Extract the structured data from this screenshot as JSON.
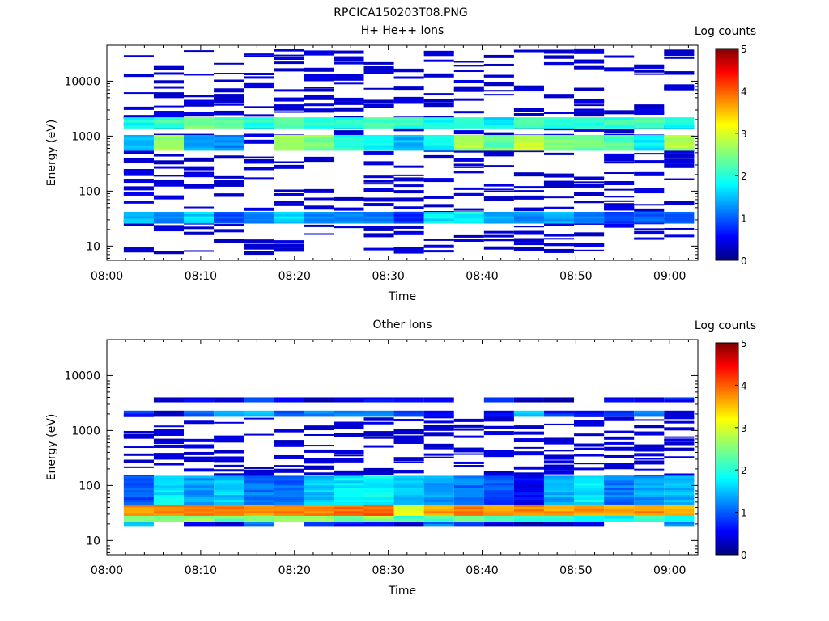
{
  "figure": {
    "title": "RPCICA150203T08.PNG"
  },
  "chart_data": [
    {
      "type": "heatmap",
      "title": "H+ He++ Ions",
      "xlabel": "Time",
      "ylabel": "Energy (eV)",
      "x_tick_labels": [
        "08:00",
        "08:10",
        "08:20",
        "08:30",
        "08:40",
        "08:50",
        "09:00"
      ],
      "x_range_minutes": [
        0,
        63
      ],
      "y_scale": "log",
      "y_ticks": [
        10,
        100,
        1000,
        10000
      ],
      "y_tick_labels": [
        "10",
        "100",
        "1000",
        "10000"
      ],
      "y_range": [
        5.5,
        45000
      ],
      "colorbar": {
        "label": "Log counts",
        "range": [
          0,
          5
        ],
        "ticks": [
          "0",
          "1",
          "2",
          "3",
          "4",
          "5"
        ]
      },
      "time_bin_starts_minutes": [
        1.8,
        5.0,
        8.2,
        11.4,
        14.6,
        17.8,
        21.0,
        24.2,
        27.4,
        30.6,
        33.8,
        37.0,
        40.2,
        43.4,
        46.6,
        49.8,
        53.0,
        56.2,
        59.4
      ],
      "time_bin_width_minutes": 3.2,
      "energy_bands": [
        {
          "low": 1400,
          "high": 2200,
          "levels": [
            1.9,
            2.2,
            2.4,
            2.2,
            2.0,
            2.3,
            2.1,
            2.0,
            2.2,
            2.1,
            2.0,
            2.2,
            1.8,
            2.2,
            2.1,
            2.0,
            2.1,
            2.2,
            2.0
          ]
        },
        {
          "low": 550,
          "high": 1050,
          "levels": [
            1.6,
            2.6,
            1.5,
            1.3,
            0,
            2.7,
            2.5,
            2.0,
            1.8,
            1.5,
            1.8,
            2.7,
            2.4,
            2.8,
            2.5,
            2.4,
            2.3,
            1.8,
            2.7
          ]
        },
        {
          "low": 26,
          "high": 42,
          "levels": [
            1.5,
            1.3,
            1.7,
            1.1,
            1.2,
            1.7,
            1.3,
            1.4,
            1.2,
            0.9,
            1.8,
            1.9,
            1.5,
            1.3,
            1.5,
            1.3,
            1.0,
            1.1,
            1.2
          ]
        }
      ],
      "sparse_level": 0.3
    },
    {
      "type": "heatmap",
      "title": "Other Ions",
      "xlabel": "Time",
      "ylabel": "Energy (eV)",
      "x_tick_labels": [
        "08:00",
        "08:10",
        "08:20",
        "08:30",
        "08:40",
        "08:50",
        "09:00"
      ],
      "x_range_minutes": [
        0,
        63
      ],
      "y_scale": "log",
      "y_ticks": [
        10,
        100,
        1000,
        10000
      ],
      "y_tick_labels": [
        "10",
        "100",
        "1000",
        "10000"
      ],
      "y_range": [
        5.5,
        45000
      ],
      "colorbar": {
        "label": "Log counts",
        "range": [
          0,
          5
        ],
        "ticks": [
          "0",
          "1",
          "2",
          "3",
          "4",
          "5"
        ]
      },
      "time_bin_starts_minutes": [
        1.8,
        5.0,
        8.2,
        11.4,
        14.6,
        17.8,
        21.0,
        24.2,
        27.4,
        30.6,
        33.8,
        37.0,
        40.2,
        43.4,
        46.6,
        49.8,
        53.0,
        56.2,
        59.4
      ],
      "time_bin_width_minutes": 3.2,
      "energy_bands": [
        {
          "low": 1800,
          "high": 2300,
          "levels": [
            0.8,
            0.5,
            1.2,
            1.4,
            1.5,
            1.1,
            1.2,
            1.4,
            1.3,
            0.9,
            0.6,
            0,
            0.7,
            1.5,
            0.8,
            0.6,
            0.9,
            1.3,
            0.4
          ]
        },
        {
          "low": 3300,
          "high": 4000,
          "levels": [
            0,
            0.4,
            0.6,
            0.3,
            0.9,
            0.5,
            0.4,
            0.5,
            0.6,
            0.6,
            0.5,
            0,
            0.9,
            0.4,
            0.3,
            0,
            0.6,
            0.4,
            0.7
          ]
        },
        {
          "low": 45,
          "high": 150,
          "levels": [
            1.0,
            1.8,
            1.4,
            1.6,
            1.2,
            1.1,
            1.6,
            1.8,
            1.9,
            1.6,
            1.4,
            1.2,
            1.0,
            0.6,
            1.5,
            1.8,
            1.2,
            1.4,
            1.5
          ]
        },
        {
          "low": 28,
          "high": 45,
          "levels": [
            3.7,
            3.7,
            3.8,
            3.7,
            3.6,
            3.8,
            3.7,
            3.8,
            3.9,
            3.0,
            3.6,
            3.8,
            3.5,
            3.7,
            3.6,
            3.6,
            3.5,
            3.7,
            3.4
          ]
        },
        {
          "low": 22,
          "high": 28,
          "levels": [
            2.5,
            2.6,
            2.6,
            2.4,
            2.4,
            2.7,
            2.6,
            2.5,
            2.6,
            2.2,
            2.3,
            2.4,
            2.2,
            2.0,
            2.1,
            2.0,
            1.8,
            2.2,
            2.0
          ]
        },
        {
          "low": 18,
          "high": 22,
          "levels": [
            1.6,
            0,
            0.5,
            0.5,
            1.1,
            0,
            0.8,
            0.7,
            0.6,
            0.4,
            1.2,
            1.0,
            0.5,
            0.3,
            0.4,
            0.5,
            0,
            0,
            1.4
          ]
        }
      ],
      "sparse_level": 0.3
    }
  ]
}
